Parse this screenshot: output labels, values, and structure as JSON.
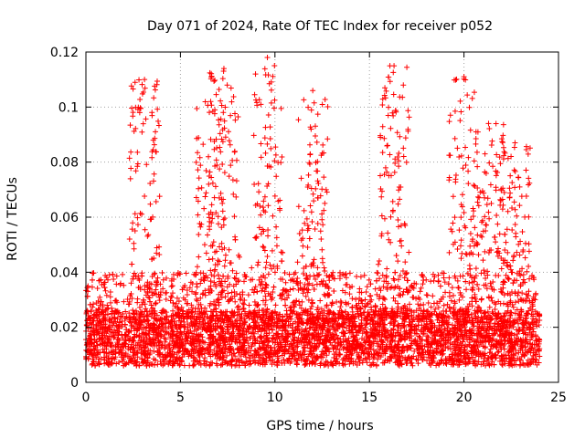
{
  "chart_data": {
    "type": "scatter",
    "title": "Day 071 of 2024, Rate Of TEC Index for receiver p052",
    "xlabel": "GPS time / hours",
    "ylabel": "ROTI / TECUs",
    "xlim": [
      0,
      25
    ],
    "ylim": [
      0,
      0.12
    ],
    "xticks": [
      0,
      5,
      10,
      15,
      20,
      25
    ],
    "yticks": [
      0,
      0.02,
      0.04,
      0.06,
      0.08,
      0.1,
      0.12
    ],
    "xtick_labels": [
      "0",
      "5",
      "10",
      "15",
      "20",
      "25"
    ],
    "ytick_labels": [
      "0",
      "0.02",
      "0.04",
      "0.06",
      "0.08",
      "0.1",
      "0.12"
    ],
    "grid": true,
    "marker": "+",
    "marker_color": "#ff0000",
    "series": [
      {
        "name": "ROTI",
        "description": "Dense point cloud spanning 0-24 h; bulk of values between 0.005 and 0.03 TECU/min with spikes",
        "peaks": [
          {
            "x": 3.1,
            "y": 0.11
          },
          {
            "x": 6.6,
            "y": 0.102
          },
          {
            "x": 7.3,
            "y": 0.114
          },
          {
            "x": 9.6,
            "y": 0.118
          },
          {
            "x": 12.0,
            "y": 0.106
          },
          {
            "x": 16.3,
            "y": 0.115
          },
          {
            "x": 20.0,
            "y": 0.111
          },
          {
            "x": 21.3,
            "y": 0.094
          },
          {
            "x": 22.7,
            "y": 0.087
          }
        ]
      }
    ]
  }
}
